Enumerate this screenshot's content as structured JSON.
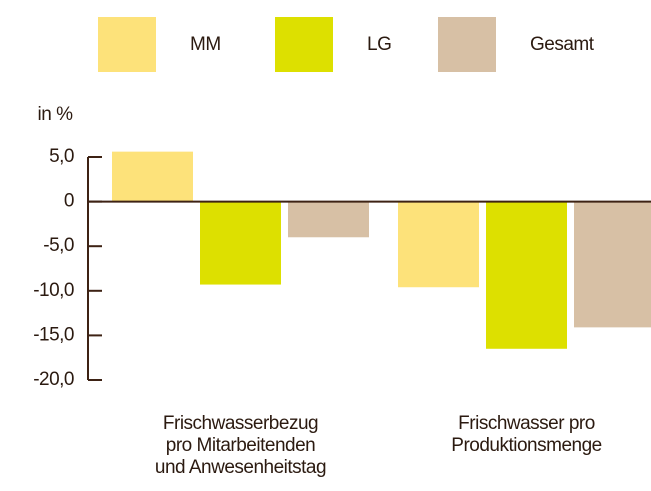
{
  "chart_data": {
    "type": "bar",
    "y_label": "in %",
    "categories": [
      "Frischwasserbezug\npro Mitarbeitenden\nund Anwesenheitstag",
      "Frischwasser pro\nProduktionsmenge"
    ],
    "series": [
      {
        "name": "MM",
        "color": "#fde27a",
        "values": [
          5.6,
          -9.6
        ]
      },
      {
        "name": "LG",
        "color": "#dde000",
        "values": [
          -9.3,
          -16.5
        ]
      },
      {
        "name": "Gesamt",
        "color": "#d7c0a5",
        "values": [
          -4.0,
          -14.1
        ]
      }
    ],
    "ylim": [
      -20,
      5
    ],
    "yticks": [
      {
        "value": 5,
        "label": "5,0"
      },
      0,
      {
        "value": -5,
        "label": "-5,0"
      },
      {
        "value": -10,
        "label": "-10,0"
      },
      {
        "value": -15,
        "label": "-15,0"
      },
      {
        "value": -20,
        "label": "-20,0"
      }
    ],
    "grid": false
  }
}
